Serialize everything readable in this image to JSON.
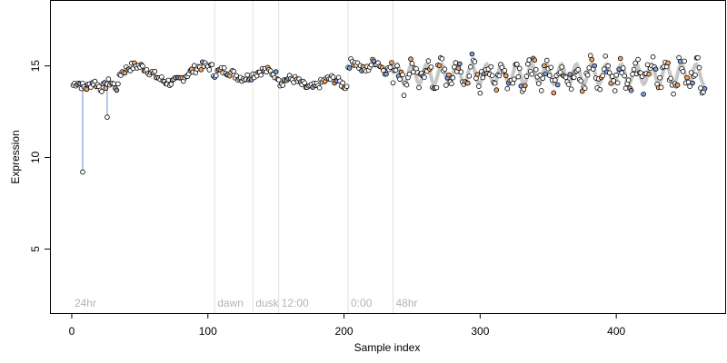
{
  "chart_data": {
    "type": "scatter",
    "xlabel": "Sample index",
    "ylabel": "Expression",
    "xlim": [
      -16,
      480
    ],
    "ylim": [
      1.5,
      18.6
    ],
    "xticks": [
      0,
      100,
      200,
      300,
      400
    ],
    "yticks": [
      5,
      10,
      15
    ],
    "grid": false,
    "colors": {
      "point_fill": "#ffffff",
      "orange": "#f4a460",
      "blue": "#7b9fdc",
      "line": "#6a8fd6",
      "smooth": "#b9b9b9",
      "vline": "#dedede",
      "phase_text": "#b3b3b3"
    },
    "phase_markers": [
      {
        "x": 0,
        "label": "24hr",
        "line": false
      },
      {
        "x": 105,
        "label": "dawn",
        "line": true
      },
      {
        "x": 133,
        "label": "dusk",
        "line": true
      },
      {
        "x": 152,
        "label": "12:00",
        "line": true
      },
      {
        "x": 203,
        "label": "0:00",
        "line": true
      },
      {
        "x": 236,
        "label": "48hr",
        "line": true
      }
    ],
    "outliers": [
      {
        "x": 8,
        "y": 9.2
      },
      {
        "x": 26,
        "y": 12.2
      }
    ],
    "segments": [
      {
        "start": 1,
        "end": 34,
        "base": 13.95,
        "amp": 0.15,
        "period": 12
      },
      {
        "start": 35,
        "end": 103,
        "base": 14.6,
        "amp": 0.5,
        "period": 40,
        "shift": 14.9
      },
      {
        "start": 104,
        "end": 152,
        "base": 14.55,
        "amp": 0.2,
        "period": 30
      },
      {
        "start": 153,
        "end": 202,
        "base": 14.05,
        "amp": 0.25,
        "period": 30
      },
      {
        "start": 203,
        "end": 235,
        "base": 15.0,
        "amp": 0.25,
        "period": 16
      },
      {
        "start": 236,
        "end": 465,
        "base": 14.55,
        "amp": 0.6,
        "period": 11
      }
    ]
  }
}
